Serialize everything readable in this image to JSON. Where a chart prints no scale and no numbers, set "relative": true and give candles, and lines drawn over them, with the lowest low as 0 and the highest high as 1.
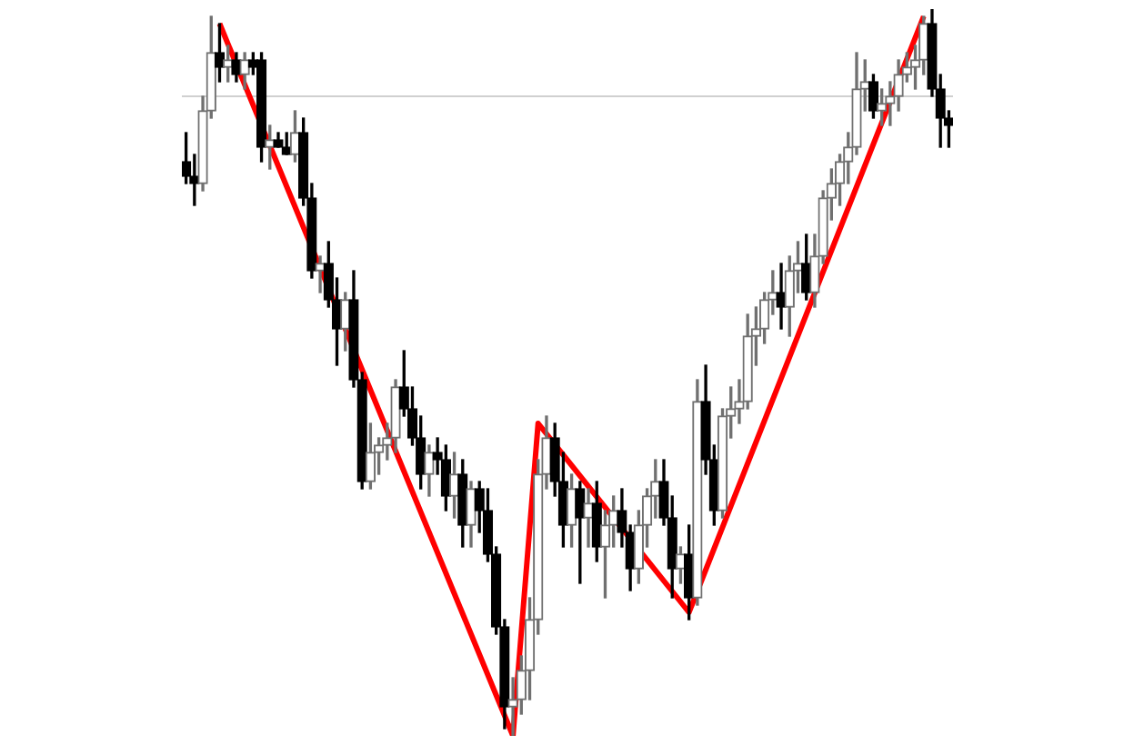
{
  "chart_data": {
    "type": "candlestick",
    "relative": true,
    "categories": [
      null,
      null,
      null,
      null,
      null,
      null,
      null,
      null,
      null,
      null,
      null,
      null,
      null,
      null,
      null,
      null,
      null,
      null,
      null,
      null,
      null,
      null,
      null,
      null,
      null,
      null,
      null,
      null,
      null,
      null,
      null,
      null,
      null,
      null,
      null,
      null,
      null,
      null,
      null,
      null,
      null,
      null,
      null,
      null,
      null,
      null,
      null,
      null,
      null,
      null,
      null,
      null,
      null,
      null,
      null,
      null,
      null,
      null,
      null,
      null,
      null,
      null,
      null,
      null,
      null,
      null,
      null,
      null,
      null,
      null,
      null,
      null,
      null,
      null,
      null,
      null,
      null,
      null,
      null,
      null,
      null,
      null,
      null,
      null,
      null,
      null,
      null,
      null,
      null,
      null,
      null,
      null
    ],
    "ohlc": [
      [
        0.79,
        0.83,
        0.76,
        0.77
      ],
      [
        0.77,
        0.8,
        0.73,
        0.76
      ],
      [
        0.76,
        0.88,
        0.75,
        0.86
      ],
      [
        0.86,
        0.99,
        0.85,
        0.94
      ],
      [
        0.94,
        0.98,
        0.9,
        0.92
      ],
      [
        0.92,
        0.95,
        0.9,
        0.93
      ],
      [
        0.93,
        0.94,
        0.9,
        0.91
      ],
      [
        0.91,
        0.94,
        0.89,
        0.93
      ],
      [
        0.93,
        0.94,
        0.91,
        0.92
      ],
      [
        0.93,
        0.94,
        0.79,
        0.81
      ],
      [
        0.81,
        0.84,
        0.78,
        0.82
      ],
      [
        0.82,
        0.83,
        0.81,
        0.81
      ],
      [
        0.81,
        0.83,
        0.8,
        0.8
      ],
      [
        0.8,
        0.86,
        0.79,
        0.83
      ],
      [
        0.83,
        0.85,
        0.73,
        0.74
      ],
      [
        0.74,
        0.76,
        0.63,
        0.64
      ],
      [
        0.64,
        0.66,
        0.61,
        0.65
      ],
      [
        0.65,
        0.68,
        0.59,
        0.6
      ],
      [
        0.6,
        0.63,
        0.51,
        0.56
      ],
      [
        0.56,
        0.61,
        0.53,
        0.6
      ],
      [
        0.6,
        0.64,
        0.48,
        0.49
      ],
      [
        0.49,
        0.5,
        0.34,
        0.35
      ],
      [
        0.35,
        0.43,
        0.34,
        0.39
      ],
      [
        0.39,
        0.41,
        0.36,
        0.4
      ],
      [
        0.4,
        0.43,
        0.38,
        0.41
      ],
      [
        0.41,
        0.49,
        0.39,
        0.48
      ],
      [
        0.48,
        0.53,
        0.44,
        0.45
      ],
      [
        0.45,
        0.48,
        0.4,
        0.41
      ],
      [
        0.41,
        0.44,
        0.34,
        0.36
      ],
      [
        0.36,
        0.4,
        0.33,
        0.39
      ],
      [
        0.39,
        0.41,
        0.36,
        0.38
      ],
      [
        0.38,
        0.4,
        0.31,
        0.33
      ],
      [
        0.33,
        0.39,
        0.3,
        0.36
      ],
      [
        0.36,
        0.38,
        0.26,
        0.29
      ],
      [
        0.29,
        0.35,
        0.26,
        0.34
      ],
      [
        0.34,
        0.35,
        0.28,
        0.31
      ],
      [
        0.31,
        0.34,
        0.24,
        0.25
      ],
      [
        0.25,
        0.26,
        0.14,
        0.15
      ],
      [
        0.15,
        0.16,
        0.01,
        0.04
      ],
      [
        0.04,
        0.08,
        0,
        0.05
      ],
      [
        0.05,
        0.11,
        0.03,
        0.09
      ],
      [
        0.09,
        0.19,
        0.05,
        0.16
      ],
      [
        0.16,
        0.38,
        0.14,
        0.36
      ],
      [
        0.36,
        0.44,
        0.34,
        0.41
      ],
      [
        0.41,
        0.43,
        0.33,
        0.35
      ],
      [
        0.35,
        0.39,
        0.26,
        0.29
      ],
      [
        0.29,
        0.36,
        0.26,
        0.34
      ],
      [
        0.34,
        0.35,
        0.21,
        0.3
      ],
      [
        0.3,
        0.34,
        0.26,
        0.32
      ],
      [
        0.32,
        0.35,
        0.24,
        0.26
      ],
      [
        0.26,
        0.31,
        0.19,
        0.29
      ],
      [
        0.29,
        0.33,
        0.26,
        0.31
      ],
      [
        0.31,
        0.34,
        0.26,
        0.28
      ],
      [
        0.28,
        0.29,
        0.2,
        0.23
      ],
      [
        0.23,
        0.31,
        0.21,
        0.29
      ],
      [
        0.29,
        0.34,
        0.26,
        0.33
      ],
      [
        0.33,
        0.38,
        0.3,
        0.35
      ],
      [
        0.35,
        0.38,
        0.29,
        0.3
      ],
      [
        0.3,
        0.33,
        0.19,
        0.23
      ],
      [
        0.23,
        0.26,
        0.21,
        0.25
      ],
      [
        0.25,
        0.29,
        0.16,
        0.19
      ],
      [
        0.19,
        0.49,
        0.18,
        0.46
      ],
      [
        0.46,
        0.51,
        0.36,
        0.38
      ],
      [
        0.38,
        0.4,
        0.29,
        0.31
      ],
      [
        0.31,
        0.45,
        0.3,
        0.44
      ],
      [
        0.44,
        0.48,
        0.41,
        0.45
      ],
      [
        0.45,
        0.49,
        0.43,
        0.46
      ],
      [
        0.46,
        0.58,
        0.45,
        0.55
      ],
      [
        0.55,
        0.59,
        0.51,
        0.56
      ],
      [
        0.56,
        0.61,
        0.54,
        0.6
      ],
      [
        0.6,
        0.64,
        0.58,
        0.61
      ],
      [
        0.61,
        0.65,
        0.56,
        0.59
      ],
      [
        0.59,
        0.66,
        0.55,
        0.64
      ],
      [
        0.64,
        0.68,
        0.61,
        0.65
      ],
      [
        0.65,
        0.69,
        0.6,
        0.61
      ],
      [
        0.61,
        0.69,
        0.59,
        0.66
      ],
      [
        0.66,
        0.75,
        0.65,
        0.74
      ],
      [
        0.74,
        0.78,
        0.71,
        0.76
      ],
      [
        0.76,
        0.8,
        0.73,
        0.79
      ],
      [
        0.79,
        0.83,
        0.76,
        0.81
      ],
      [
        0.81,
        0.94,
        0.8,
        0.89
      ],
      [
        0.89,
        0.93,
        0.86,
        0.9
      ],
      [
        0.9,
        0.91,
        0.85,
        0.86
      ],
      [
        0.86,
        0.89,
        0.84,
        0.87
      ],
      [
        0.87,
        0.9,
        0.84,
        0.88
      ],
      [
        0.88,
        0.93,
        0.86,
        0.91
      ],
      [
        0.91,
        0.94,
        0.9,
        0.92
      ],
      [
        0.92,
        0.95,
        0.89,
        0.93
      ],
      [
        0.93,
        0.99,
        0.91,
        0.98
      ],
      [
        0.98,
        1,
        0.88,
        0.89
      ],
      [
        0.89,
        0.91,
        0.81,
        0.85
      ],
      [
        0.85,
        0.86,
        0.81,
        0.84
      ]
    ],
    "series": [
      {
        "type": "line",
        "color": "#ff0000",
        "values": [
          null,
          null,
          null,
          null,
          0.98,
          null,
          null,
          null,
          null,
          null,
          null,
          null,
          null,
          null,
          null,
          null,
          null,
          null,
          null,
          null,
          null,
          null,
          null,
          null,
          null,
          null,
          null,
          null,
          null,
          null,
          null,
          null,
          null,
          null,
          null,
          null,
          null,
          null,
          null,
          0.0,
          null,
          null,
          0.43,
          null,
          null,
          null,
          null,
          null,
          null,
          null,
          null,
          null,
          null,
          null,
          null,
          null,
          null,
          null,
          null,
          null,
          0.17,
          null,
          null,
          null,
          null,
          null,
          null,
          null,
          null,
          null,
          null,
          null,
          null,
          null,
          null,
          null,
          null,
          null,
          null,
          null,
          null,
          null,
          null,
          null,
          null,
          null,
          null,
          null,
          0.99,
          null,
          null,
          null
        ]
      }
    ],
    "ref_lines": [
      {
        "axis": "y",
        "value": 0.88,
        "color": "#d0d0d0"
      }
    ]
  }
}
